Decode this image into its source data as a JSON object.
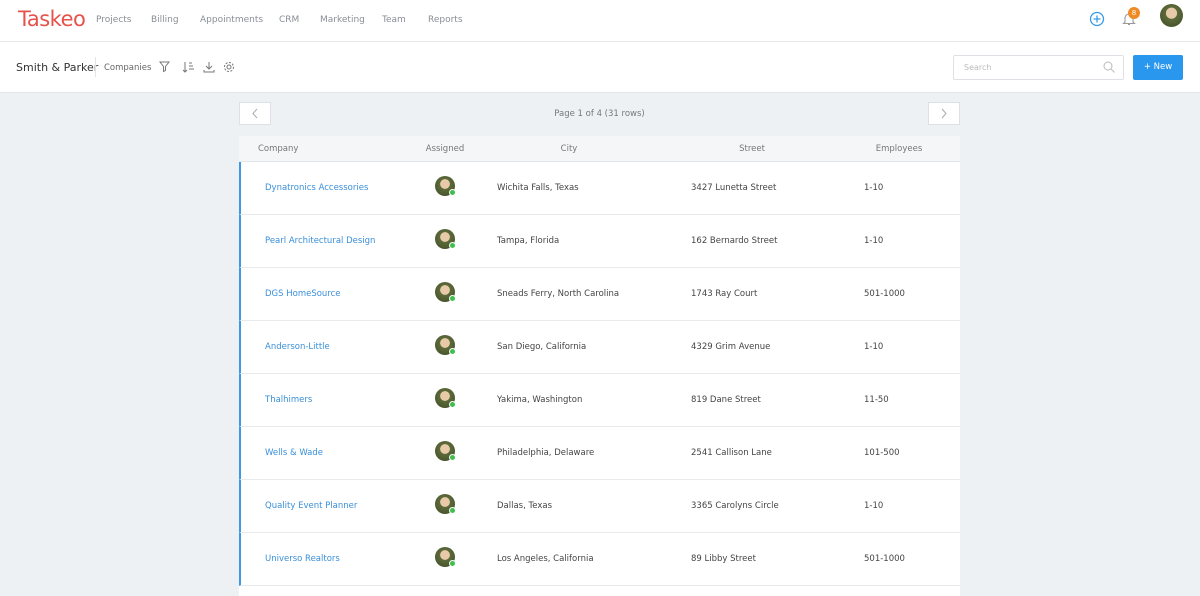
{
  "nav": {
    "brand": "Taskeo",
    "items": [
      "Projects",
      "Billing",
      "Appointments",
      "CRM",
      "Marketing",
      "Team",
      "Reports"
    ],
    "notification_count": "8"
  },
  "toolbar": {
    "title": "Smith & Parker",
    "view": "Companies",
    "search_placeholder": "Search",
    "new_button": "+ New"
  },
  "pager": {
    "label": "Page 1 of 4 (31 rows)"
  },
  "table": {
    "headers": [
      "Company",
      "Assigned",
      "City",
      "Street",
      "Employees"
    ],
    "rows": [
      [
        "Dynatronics Accessories",
        "Wichita Falls, Texas",
        "3427 Lunetta Street",
        "1-10"
      ],
      [
        "Pearl Architectural Design",
        "Tampa, Florida",
        "162 Bernardo Street",
        "1-10"
      ],
      [
        "DGS HomeSource",
        "Sneads Ferry, North Carolina",
        "1743 Ray Court",
        "501-1000"
      ],
      [
        "Anderson-Little",
        "San Diego, California",
        "4329 Grim Avenue",
        "1-10"
      ],
      [
        "Thalhimers",
        "Yakima, Washington",
        "819 Dane Street",
        "11-50"
      ],
      [
        "Wells & Wade",
        "Philadelphia, Delaware",
        "2541 Callison Lane",
        "101-500"
      ],
      [
        "Quality Event Planner",
        "Dallas, Texas",
        "3365 Carolyns Circle",
        "1-10"
      ],
      [
        "Universo Realtors",
        "Los Angeles, California",
        "89 Libby Street",
        "501-1000"
      ]
    ]
  }
}
